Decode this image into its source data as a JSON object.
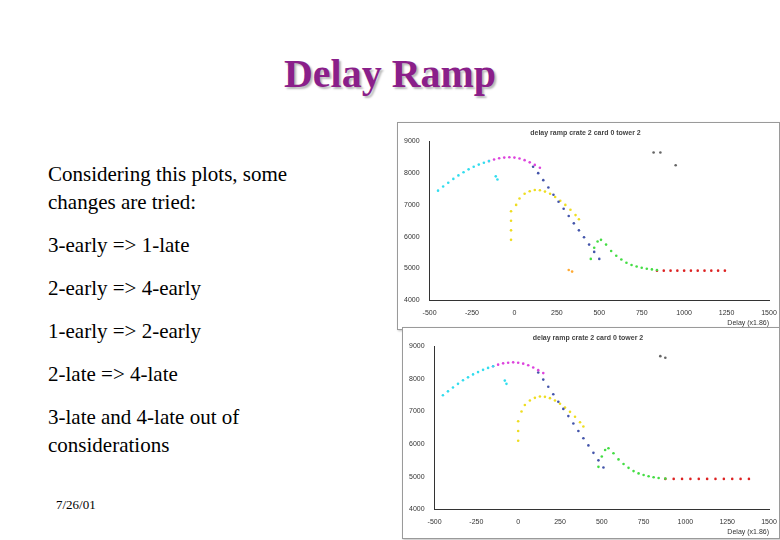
{
  "slide": {
    "title": "Delay Ramp",
    "lines": [
      "Considering this plots, some changes are tried:",
      "3-early => 1-late",
      "2-early => 4-early",
      "1-early => 2-early",
      "2-late => 4-late",
      "3-late and 4-late out of considerations"
    ],
    "date": "7/26/01"
  },
  "chart_data": [
    {
      "type": "scatter",
      "title": "delay ramp crate 2 card 0 tower 2",
      "x_label": "Delay (x1.86)",
      "xlim": [
        -500,
        1500
      ],
      "xticks": [
        -500,
        -250,
        0,
        250,
        500,
        750,
        1000,
        1250,
        1500
      ],
      "ylim": [
        4000,
        9000
      ],
      "yticks": [
        4000,
        5000,
        6000,
        7000,
        8000,
        9000
      ],
      "grid": false,
      "series": [
        {
          "color": "#33ddee",
          "x": [
            -450,
            -420,
            -390,
            -360,
            -330,
            -300,
            -270,
            -240,
            -210,
            -180,
            -150,
            -110,
            -100
          ],
          "values": [
            7450,
            7580,
            7700,
            7820,
            7930,
            8030,
            8120,
            8200,
            8270,
            8330,
            8380,
            7900,
            7800
          ]
        },
        {
          "color": "#dd44dd",
          "x": [
            -150,
            -120,
            -90,
            -60,
            -30,
            0,
            30,
            60,
            90,
            120,
            150
          ],
          "values": [
            8380,
            8430,
            8470,
            8490,
            8500,
            8490,
            8460,
            8410,
            8340,
            8260,
            8170
          ]
        },
        {
          "color": "#4455aa",
          "x": [
            110,
            140,
            170,
            200,
            230,
            260,
            290,
            320,
            350,
            380,
            410,
            440,
            470,
            500
          ],
          "values": [
            8200,
            8000,
            7780,
            7550,
            7320,
            7100,
            6880,
            6650,
            6420,
            6200,
            5980,
            5750,
            5520,
            5300
          ]
        },
        {
          "color": "#eedd22",
          "x": [
            10,
            30,
            60,
            90,
            120,
            150,
            180,
            210,
            240,
            270,
            300,
            330,
            360,
            380,
            -20,
            -20,
            -20,
            -20
          ],
          "values": [
            7000,
            7200,
            7350,
            7430,
            7470,
            7460,
            7420,
            7350,
            7250,
            7130,
            7000,
            6850,
            6680,
            6550,
            6800,
            6500,
            6200,
            5900
          ]
        },
        {
          "color": "#44dd44",
          "x": [
            450,
            470,
            490,
            510,
            540,
            570,
            600,
            630,
            660,
            690,
            720,
            750,
            780,
            810,
            840
          ],
          "values": [
            5300,
            5650,
            5850,
            5900,
            5750,
            5550,
            5400,
            5280,
            5180,
            5110,
            5060,
            5020,
            4990,
            4970,
            4950
          ]
        },
        {
          "color": "#dd2222",
          "x": [
            840,
            880,
            920,
            960,
            1000,
            1040,
            1080,
            1120,
            1160,
            1200,
            1240
          ],
          "values": [
            4930,
            4930,
            4930,
            4930,
            4930,
            4930,
            4930,
            4930,
            4930,
            4930,
            4930
          ]
        },
        {
          "color": "#666666",
          "x": [
            820,
            860,
            950
          ],
          "values": [
            8650,
            8650,
            8250
          ]
        },
        {
          "color": "#ffaa33",
          "x": [
            320,
            340
          ],
          "values": [
            4950,
            4900
          ]
        }
      ]
    },
    {
      "type": "scatter",
      "title": "delay ramp crate 2 card 0 tower 2",
      "x_label": "Delay (x1.86)",
      "xlim": [
        -500,
        1500
      ],
      "xticks": [
        -500,
        -250,
        0,
        250,
        500,
        750,
        1000,
        1250,
        1500
      ],
      "ylim": [
        4000,
        9000
      ],
      "yticks": [
        4000,
        5000,
        6000,
        7000,
        8000,
        9000
      ],
      "grid": false,
      "series": [
        {
          "color": "#33ddee",
          "x": [
            -450,
            -420,
            -390,
            -360,
            -330,
            -300,
            -270,
            -240,
            -210,
            -180,
            -150,
            -80,
            -70
          ],
          "values": [
            7500,
            7620,
            7740,
            7850,
            7960,
            8050,
            8140,
            8210,
            8280,
            8340,
            8390,
            7950,
            7850
          ]
        },
        {
          "color": "#dd44dd",
          "x": [
            -150,
            -120,
            -90,
            -60,
            -30,
            0,
            30,
            60,
            90,
            120,
            150
          ],
          "values": [
            8390,
            8440,
            8480,
            8500,
            8510,
            8500,
            8470,
            8420,
            8350,
            8270,
            8180
          ]
        },
        {
          "color": "#4455aa",
          "x": [
            120,
            150,
            180,
            210,
            240,
            270,
            300,
            330,
            360,
            390,
            420,
            450,
            480,
            510
          ],
          "values": [
            8200,
            7980,
            7760,
            7530,
            7300,
            7080,
            6860,
            6630,
            6400,
            6180,
            5960,
            5730,
            5500,
            5280
          ]
        },
        {
          "color": "#eedd22",
          "x": [
            20,
            40,
            70,
            100,
            130,
            160,
            190,
            220,
            250,
            280,
            310,
            340,
            370,
            390,
            0,
            0,
            0
          ],
          "values": [
            7000,
            7200,
            7340,
            7420,
            7460,
            7450,
            7410,
            7340,
            7240,
            7120,
            6990,
            6840,
            6670,
            6540,
            6700,
            6400,
            6100
          ]
        },
        {
          "color": "#44dd44",
          "x": [
            480,
            500,
            520,
            540,
            570,
            600,
            630,
            660,
            690,
            720,
            750,
            780,
            810,
            840,
            880
          ],
          "values": [
            5300,
            5620,
            5820,
            5870,
            5720,
            5530,
            5390,
            5270,
            5170,
            5100,
            5050,
            5010,
            4980,
            4960,
            4940
          ]
        },
        {
          "color": "#dd2222",
          "x": [
            880,
            930,
            980,
            1030,
            1080,
            1130,
            1180,
            1230,
            1280,
            1330,
            1380
          ],
          "values": [
            4930,
            4930,
            4930,
            4930,
            4930,
            4930,
            4930,
            4930,
            4930,
            4930,
            4930
          ]
        },
        {
          "color": "#666666",
          "x": [
            850,
            880
          ],
          "values": [
            8700,
            8650
          ]
        }
      ]
    }
  ]
}
